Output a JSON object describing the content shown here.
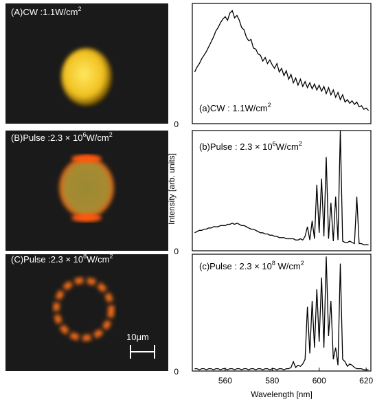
{
  "images": [
    {
      "label": [
        {
          "text": "(A)CW :1.1W/cm"
        },
        {
          "sup": "2"
        }
      ]
    },
    {
      "label": [
        {
          "text": "(B)Pulse :2.3"
        },
        {
          "text": " × "
        },
        {
          "text": "10"
        },
        {
          "sup": "6"
        },
        {
          "text": "W/cm"
        },
        {
          "sup": "2"
        }
      ]
    },
    {
      "label": [
        {
          "text": "(C)Pulse :2.3"
        },
        {
          "text": " × "
        },
        {
          "text": "10"
        },
        {
          "sup": "8"
        },
        {
          "text": "W/cm"
        },
        {
          "sup": "2"
        }
      ]
    }
  ],
  "scale_bar": "10μm",
  "chart_data": [
    {
      "type": "line",
      "annotation": [
        {
          "text": "(a)CW : 1.1W/cm"
        },
        {
          "sup": "2"
        }
      ],
      "color": "#000000",
      "xlim": [
        546,
        622
      ],
      "ylim": [
        0,
        1
      ],
      "yticks": [
        0
      ],
      "x": [
        547,
        548,
        549,
        550,
        551,
        552,
        553,
        554,
        555,
        556,
        557,
        558,
        559,
        560,
        561,
        562,
        563,
        564,
        565,
        566,
        567,
        568,
        569,
        570,
        571,
        572,
        573,
        574,
        575,
        576,
        577,
        578,
        579,
        580,
        581,
        582,
        583,
        584,
        585,
        586,
        587,
        588,
        589,
        590,
        591,
        592,
        593,
        594,
        595,
        596,
        597,
        598,
        599,
        600,
        601,
        602,
        603,
        604,
        605,
        606,
        607,
        608,
        609,
        610,
        611,
        612,
        613,
        614,
        615,
        616,
        617,
        618,
        619,
        620,
        621
      ],
      "values": [
        0.43,
        0.47,
        0.5,
        0.54,
        0.57,
        0.6,
        0.64,
        0.68,
        0.72,
        0.77,
        0.8,
        0.84,
        0.87,
        0.89,
        0.86,
        0.92,
        0.94,
        0.88,
        0.9,
        0.86,
        0.8,
        0.78,
        0.72,
        0.69,
        0.7,
        0.63,
        0.62,
        0.58,
        0.57,
        0.52,
        0.55,
        0.5,
        0.53,
        0.49,
        0.46,
        0.5,
        0.43,
        0.46,
        0.4,
        0.44,
        0.37,
        0.41,
        0.34,
        0.38,
        0.32,
        0.37,
        0.31,
        0.35,
        0.3,
        0.34,
        0.29,
        0.33,
        0.28,
        0.32,
        0.27,
        0.31,
        0.25,
        0.3,
        0.24,
        0.28,
        0.22,
        0.26,
        0.2,
        0.24,
        0.18,
        0.2,
        0.17,
        0.19,
        0.16,
        0.18,
        0.14,
        0.15,
        0.12,
        0.13,
        0.11
      ]
    },
    {
      "type": "line",
      "annotation": [
        {
          "text": "(b)Pulse : 2.3"
        },
        {
          "text": " × "
        },
        {
          "text": "10"
        },
        {
          "sup": "6"
        },
        {
          "text": "W/cm"
        },
        {
          "sup": "2"
        }
      ],
      "color": "#000000",
      "ylabel": "Intensity [arb. units]",
      "xlim": [
        546,
        622
      ],
      "ylim": [
        0,
        1
      ],
      "yticks": [
        0
      ],
      "x": [
        547,
        548,
        549,
        550,
        551,
        552,
        553,
        554,
        555,
        556,
        557,
        558,
        559,
        560,
        561,
        562,
        563,
        564,
        565,
        566,
        567,
        568,
        569,
        570,
        571,
        572,
        573,
        574,
        575,
        576,
        577,
        578,
        579,
        580,
        581,
        582,
        583,
        584,
        585,
        586,
        587,
        588,
        589,
        590,
        591,
        592,
        593,
        594,
        595,
        596,
        597,
        598,
        599,
        600,
        601,
        602,
        603,
        604,
        605,
        606,
        607,
        608,
        609,
        610,
        611,
        612,
        613,
        614,
        615,
        616,
        617,
        618,
        619,
        620,
        621
      ],
      "values": [
        0.15,
        0.16,
        0.17,
        0.17,
        0.18,
        0.18,
        0.19,
        0.19,
        0.2,
        0.2,
        0.2,
        0.21,
        0.21,
        0.21,
        0.22,
        0.22,
        0.23,
        0.22,
        0.23,
        0.22,
        0.21,
        0.21,
        0.2,
        0.19,
        0.18,
        0.18,
        0.17,
        0.16,
        0.15,
        0.15,
        0.14,
        0.14,
        0.13,
        0.13,
        0.12,
        0.12,
        0.11,
        0.11,
        0.11,
        0.1,
        0.1,
        0.1,
        0.1,
        0.09,
        0.09,
        0.1,
        0.09,
        0.12,
        0.2,
        0.09,
        0.25,
        0.1,
        0.55,
        0.15,
        0.6,
        0.12,
        0.78,
        0.1,
        0.4,
        0.08,
        0.45,
        0.09,
        1.0,
        0.08,
        0.07,
        0.07,
        0.08,
        0.07,
        0.06,
        0.45,
        0.06,
        0.06,
        0.05,
        0.05,
        0.05
      ]
    },
    {
      "type": "line",
      "annotation": [
        {
          "text": "(c)Pulse : 2.3"
        },
        {
          "text": " × "
        },
        {
          "text": "10"
        },
        {
          "sup": "8"
        },
        {
          "text": " W/cm"
        },
        {
          "sup": "2"
        }
      ],
      "color": "#000000",
      "xlabel": "Wavelength [nm]",
      "xlim": [
        546,
        622
      ],
      "xticks": [
        560,
        580,
        600,
        620
      ],
      "ylim": [
        0,
        1
      ],
      "yticks": [
        0
      ],
      "x": [
        547,
        548,
        549,
        550,
        551,
        552,
        553,
        554,
        555,
        556,
        557,
        558,
        559,
        560,
        561,
        562,
        563,
        564,
        565,
        566,
        567,
        568,
        569,
        570,
        571,
        572,
        573,
        574,
        575,
        576,
        577,
        578,
        579,
        580,
        581,
        582,
        583,
        584,
        585,
        586,
        587,
        588,
        589,
        590,
        591,
        592,
        593,
        594,
        595,
        596,
        597,
        598,
        599,
        600,
        601,
        602,
        603,
        604,
        605,
        606,
        607,
        608,
        609,
        610,
        611,
        612,
        613,
        614,
        615,
        616,
        617,
        618,
        619,
        620,
        621
      ],
      "values": [
        0.02,
        0.02,
        0.01,
        0.02,
        0.02,
        0.01,
        0.02,
        0.02,
        0.01,
        0.02,
        0.02,
        0.01,
        0.02,
        0.02,
        0.01,
        0.02,
        0.02,
        0.01,
        0.02,
        0.02,
        0.01,
        0.02,
        0.02,
        0.01,
        0.02,
        0.02,
        0.01,
        0.02,
        0.02,
        0.01,
        0.02,
        0.02,
        0.01,
        0.02,
        0.02,
        0.01,
        0.02,
        0.02,
        0.01,
        0.02,
        0.02,
        0.03,
        0.08,
        0.03,
        0.05,
        0.04,
        0.06,
        0.1,
        0.55,
        0.15,
        0.6,
        0.2,
        0.7,
        0.25,
        0.8,
        0.2,
        0.98,
        0.3,
        0.6,
        0.1,
        0.2,
        0.05,
        0.92,
        0.1,
        0.08,
        0.04,
        0.06,
        0.05,
        0.03,
        0.02,
        0.02,
        0.02,
        0.01,
        0.01,
        0.01
      ]
    }
  ]
}
